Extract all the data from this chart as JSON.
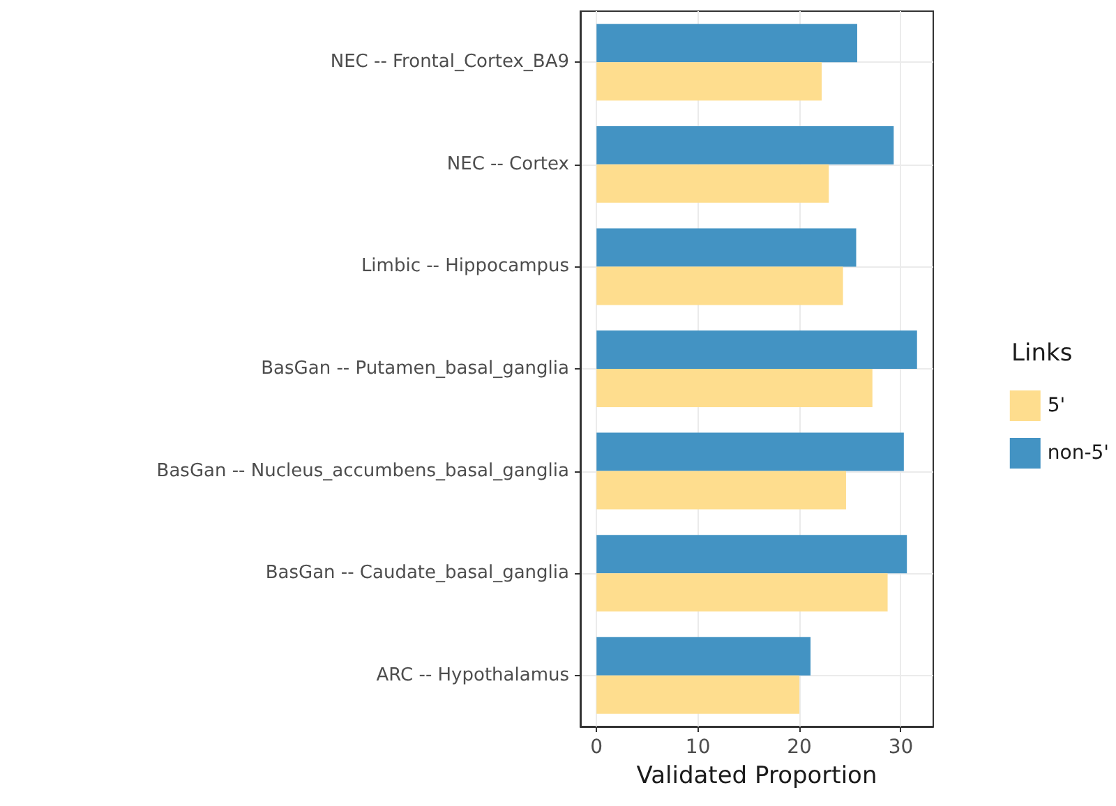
{
  "chart_data": {
    "type": "bar",
    "orientation": "horizontal",
    "xlabel": "Validated Proportion",
    "legend_title": "Links",
    "legend": "right",
    "grid": true,
    "categories": [
      "NEC -- Frontal_Cortex_BA9",
      "NEC -- Cortex",
      "Limbic -- Hippocampus",
      "BasGan -- Putamen_basal_ganglia",
      "BasGan -- Nucleus_accumbens_basal_ganglia",
      "BasGan -- Caudate_basal_ganglia",
      "ARC -- Hypothalamus"
    ],
    "series": [
      {
        "name": "5'",
        "color": "#fedd8e",
        "values": [
          22.2,
          22.9,
          24.3,
          27.2,
          24.6,
          28.7,
          20.0
        ]
      },
      {
        "name": "non-5'",
        "color": "#4393c3",
        "values": [
          25.7,
          29.3,
          25.6,
          31.6,
          30.3,
          30.6,
          21.1
        ]
      }
    ],
    "xlim": [
      -1.6,
      33.2
    ],
    "xticks": [
      0,
      10,
      20,
      30
    ]
  }
}
